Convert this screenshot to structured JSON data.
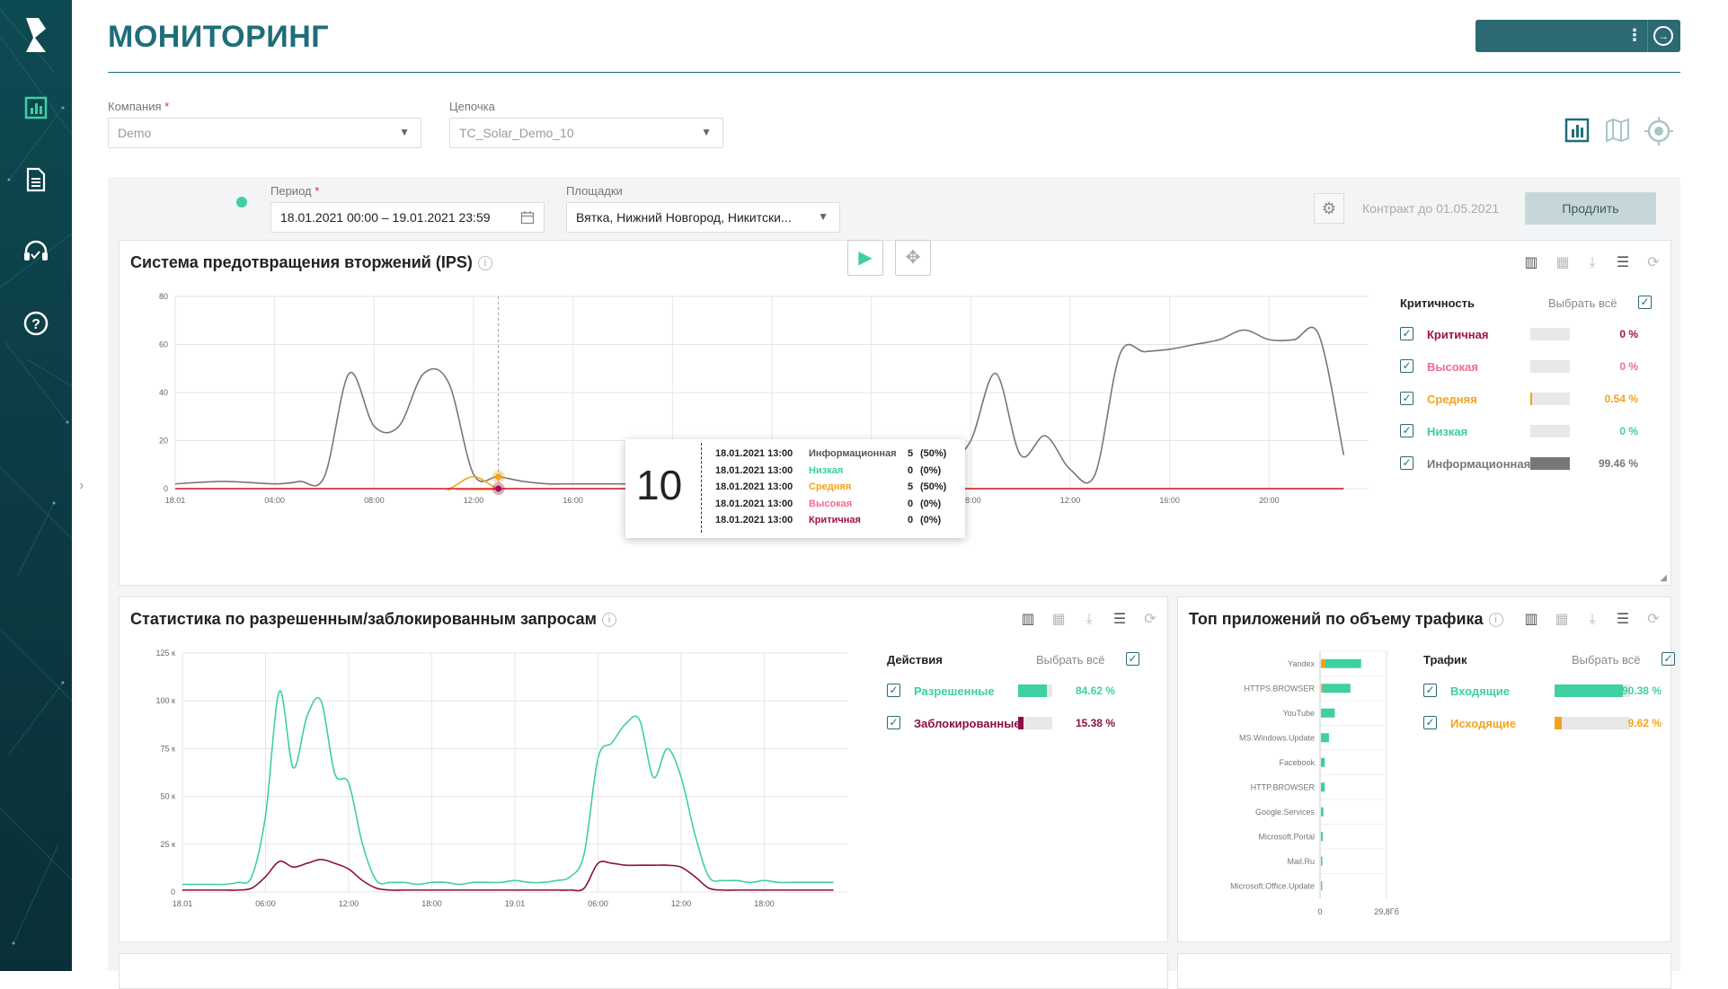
{
  "header": {
    "title": "МОНИТОРИНГ"
  },
  "filters": {
    "company_label": "Компания",
    "company_value": "Demo",
    "chain_label": "Цепочка",
    "chain_value": "TC_Solar_Demo_10",
    "period_label": "Период",
    "period_value": "18.01.2021 00:00 – 19.01.2021 23:59",
    "sites_label": "Площадки",
    "sites_value": "Вятка, Нижний Новгород, Никитски...",
    "required_mark": "*"
  },
  "contract": {
    "text": "Контракт до 01.05.2021",
    "extend_label": "Продлить"
  },
  "ips": {
    "title": "Система предотвращения вторжений (IPS)",
    "legend_head": "Критичность",
    "select_all": "Выбрать всё",
    "legend": [
      {
        "label": "Критичная",
        "pct": "0 %",
        "value": 0,
        "color": "#a0124d"
      },
      {
        "label": "Высокая",
        "pct": "0 %",
        "value": 0,
        "color": "#f06d8c"
      },
      {
        "label": "Средняя",
        "pct": "0.54 %",
        "value": 0.54,
        "color": "#f5a31a"
      },
      {
        "label": "Низкая",
        "pct": "0 %",
        "value": 0,
        "color": "#3ecfa3"
      },
      {
        "label": "Информационная",
        "pct": "99.46 %",
        "value": 99.46,
        "color": "#777777"
      }
    ],
    "tooltip": {
      "value": "10",
      "rows": [
        {
          "time": "18.01.2021 13:00",
          "label": "Информационная",
          "count": "5",
          "share": "(50%)",
          "color": "#555555"
        },
        {
          "time": "18.01.2021 13:00",
          "label": "Низкая",
          "count": "0",
          "share": "(0%)",
          "color": "#3ecfa3"
        },
        {
          "time": "18.01.2021 13:00",
          "label": "Средняя",
          "count": "5",
          "share": "(50%)",
          "color": "#f5a31a"
        },
        {
          "time": "18.01.2021 13:00",
          "label": "Высокая",
          "count": "0",
          "share": "(0%)",
          "color": "#f06d8c"
        },
        {
          "time": "18.01.2021 13:00",
          "label": "Критичная",
          "count": "0",
          "share": "(0%)",
          "color": "#a0124d"
        }
      ]
    }
  },
  "requests": {
    "title": "Статистика по разрешенным/заблокированным запросам",
    "legend_head": "Действия",
    "select_all": "Выбрать всё",
    "legend": [
      {
        "label": "Разрешенные",
        "pct": "84.62 %",
        "value": 84.62,
        "color": "#3ecfa3"
      },
      {
        "label": "Заблокированные",
        "pct": "15.38 %",
        "value": 15.38,
        "color": "#8a0f45"
      }
    ]
  },
  "apps": {
    "title": "Топ приложений по объему трафика",
    "legend_head": "Трафик",
    "select_all": "Выбрать всё",
    "legend": [
      {
        "label": "Входящие",
        "pct": "90.38 %",
        "value": 90.38,
        "color": "#3ecfa3"
      },
      {
        "label": "Исходящие",
        "pct": "9.62 %",
        "value": 9.62,
        "color": "#f5a31a"
      }
    ]
  },
  "chart_data": [
    {
      "type": "line",
      "title": "Система предотвращения вторжений (IPS)",
      "x_ticks": [
        "18.01",
        "04:00",
        "08:00",
        "12:00",
        "16:00",
        "20:00",
        "19.01",
        "04:00",
        "08:00",
        "12:00",
        "16:00",
        "20:00"
      ],
      "y_ticks": [
        "0",
        "20",
        "40",
        "60",
        "80"
      ],
      "ylim": [
        0,
        80
      ],
      "series": [
        {
          "name": "Информационная",
          "color": "#777777",
          "x": [
            0,
            2,
            4,
            5,
            6,
            7,
            8,
            9,
            10,
            11,
            12,
            13,
            14,
            15,
            16,
            17,
            18,
            19,
            20,
            21,
            22,
            23,
            24,
            25,
            26,
            27,
            28,
            29,
            30,
            31,
            32,
            33,
            34,
            35,
            36,
            37,
            38,
            39,
            40,
            41,
            42,
            43,
            44,
            45,
            46,
            47
          ],
          "y": [
            2,
            3,
            2,
            3,
            5,
            48,
            26,
            26,
            48,
            44,
            6,
            5,
            3,
            2,
            2,
            2,
            2,
            2,
            2,
            2,
            2,
            2,
            2,
            2,
            3,
            4,
            5,
            6,
            6,
            10,
            20,
            48,
            14,
            22,
            8,
            6,
            56,
            57,
            58,
            60,
            62,
            66,
            62,
            62,
            64,
            14
          ]
        },
        {
          "name": "Средняя",
          "color": "#f5a31a",
          "x": [
            0,
            10,
            11,
            12,
            13,
            14,
            47
          ],
          "y": [
            0,
            0,
            0,
            5,
            0,
            0,
            0
          ]
        },
        {
          "name": "Критичная",
          "color": "#d01f3b",
          "x": [
            0,
            47
          ],
          "y": [
            0,
            0
          ]
        }
      ]
    },
    {
      "type": "line",
      "title": "Статистика по разрешенным/заблокированным запросам",
      "x_ticks": [
        "18.01",
        "06:00",
        "12:00",
        "18:00",
        "19.01",
        "06:00",
        "12:00",
        "18:00"
      ],
      "y_ticks": [
        "0",
        "25 к",
        "50 к",
        "75 к",
        "100 к",
        "125 к"
      ],
      "ylim": [
        0,
        125000
      ],
      "series": [
        {
          "name": "Разрешенные",
          "color": "#3ecfa3",
          "x": [
            0,
            1,
            2,
            3,
            4,
            5,
            6,
            7,
            8,
            9,
            10,
            11,
            12,
            13,
            14,
            15,
            16,
            17,
            18,
            19,
            20,
            21,
            22,
            23,
            24,
            25,
            26,
            27,
            28,
            29,
            30,
            31,
            32,
            33,
            34,
            35,
            36,
            37,
            38,
            39,
            40,
            41,
            42,
            43,
            44,
            45,
            46,
            47
          ],
          "y": [
            4000,
            4000,
            4000,
            4000,
            5000,
            8000,
            40000,
            105000,
            65000,
            92000,
            100000,
            62000,
            57000,
            25000,
            6000,
            5000,
            5000,
            4000,
            5000,
            5000,
            4000,
            5000,
            5000,
            5000,
            6000,
            5000,
            5000,
            6000,
            8000,
            20000,
            70000,
            78000,
            88000,
            90000,
            60000,
            75000,
            60000,
            30000,
            8000,
            6000,
            6000,
            5000,
            6000,
            5000,
            5000,
            5000,
            5000,
            5000
          ]
        },
        {
          "name": "Заблокированные",
          "color": "#8a0f45",
          "x": [
            0,
            1,
            2,
            3,
            4,
            5,
            6,
            7,
            8,
            9,
            10,
            11,
            12,
            13,
            14,
            15,
            16,
            17,
            18,
            19,
            20,
            21,
            22,
            23,
            24,
            25,
            26,
            27,
            28,
            29,
            30,
            31,
            32,
            33,
            34,
            35,
            36,
            37,
            38,
            39,
            40,
            41,
            42,
            43,
            44,
            45,
            46,
            47
          ],
          "y": [
            1000,
            1000,
            1000,
            1000,
            1000,
            2000,
            8000,
            16000,
            13000,
            15000,
            17000,
            15000,
            12000,
            6000,
            2000,
            1000,
            1000,
            1000,
            1000,
            1000,
            1000,
            1000,
            1000,
            1000,
            1000,
            1000,
            1000,
            1000,
            1000,
            2000,
            15000,
            15000,
            14000,
            14000,
            14000,
            14000,
            13000,
            8000,
            2000,
            1000,
            1000,
            1000,
            1000,
            1000,
            1000,
            1000,
            1000,
            1000
          ]
        }
      ]
    },
    {
      "type": "bar",
      "title": "Топ приложений по объему трафика",
      "orientation": "horizontal",
      "categories": [
        "Yandex",
        "HTTPS.BROWSER",
        "YouTube",
        "MS.Windows.Update",
        "Facebook",
        "HTTP.BROWSER",
        "Google.Services",
        "Microsoft.Portal",
        "Mail.Ru",
        "Microsoft.Office.Update"
      ],
      "series": [
        {
          "name": "Исходящие",
          "color": "#f5a31a",
          "values": [
            2.0,
            0.7,
            0.2,
            0.2,
            0.1,
            0.1,
            0.1,
            0.05,
            0.05,
            0.05
          ]
        },
        {
          "name": "Входящие",
          "color": "#3ecfa3",
          "values": [
            16.0,
            12.5,
            6.0,
            3.4,
            1.6,
            1.6,
            1.0,
            0.8,
            0.6,
            0.5
          ]
        }
      ],
      "x_ticks": [
        "0",
        "29,8Гб"
      ],
      "xlim": [
        0,
        29.8
      ]
    }
  ]
}
